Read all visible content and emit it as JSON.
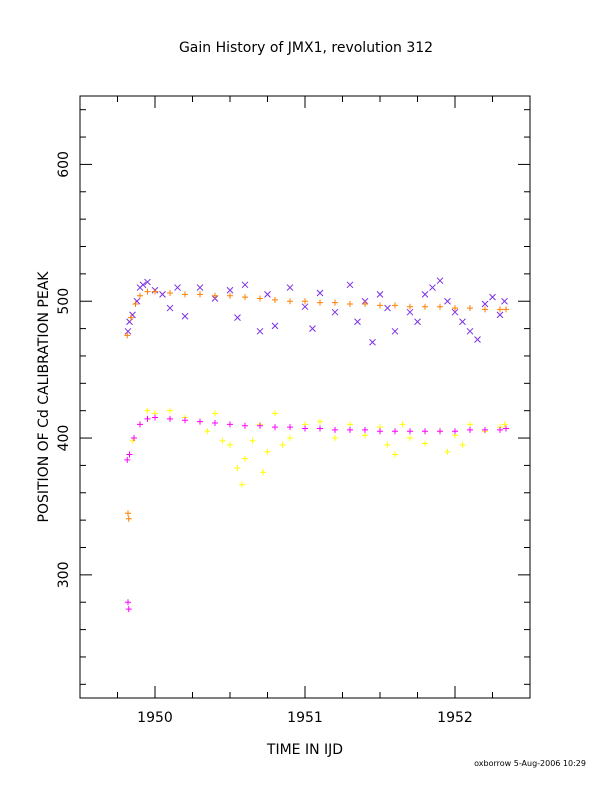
{
  "chart_data": {
    "type": "scatter",
    "title": "Gain History of JMX1, revolution 312",
    "xlabel": "TIME IN IJD",
    "ylabel": "POSITION OF Cd CALIBRATION PEAK",
    "xlim": [
      1949.5,
      1952.5
    ],
    "ylim": [
      210,
      650
    ],
    "x_ticks": [
      "1950",
      "1951",
      "1952"
    ],
    "x_tick_values": [
      1950,
      1951,
      1952
    ],
    "y_ticks": [
      "300",
      "400",
      "500",
      "600"
    ],
    "y_tick_values": [
      300,
      400,
      500,
      600
    ],
    "grid": false,
    "legend": "none",
    "series": [
      {
        "marker": "x",
        "color": "#7b2fe6",
        "points": [
          [
            1949.82,
            478
          ],
          [
            1949.83,
            485
          ],
          [
            1949.85,
            490
          ],
          [
            1949.88,
            500
          ],
          [
            1949.9,
            510
          ],
          [
            1949.92,
            512
          ],
          [
            1949.95,
            514
          ],
          [
            1950.0,
            508
          ],
          [
            1950.05,
            505
          ],
          [
            1950.1,
            495
          ],
          [
            1950.15,
            510
          ],
          [
            1950.2,
            489
          ],
          [
            1950.3,
            510
          ],
          [
            1950.4,
            502
          ],
          [
            1950.5,
            508
          ],
          [
            1950.55,
            488
          ],
          [
            1950.6,
            512
          ],
          [
            1950.7,
            478
          ],
          [
            1950.75,
            505
          ],
          [
            1950.8,
            482
          ],
          [
            1950.9,
            510
          ],
          [
            1951.0,
            496
          ],
          [
            1951.05,
            480
          ],
          [
            1951.1,
            506
          ],
          [
            1951.2,
            492
          ],
          [
            1951.3,
            512
          ],
          [
            1951.35,
            485
          ],
          [
            1951.4,
            500
          ],
          [
            1951.45,
            470
          ],
          [
            1951.5,
            505
          ],
          [
            1951.55,
            495
          ],
          [
            1951.6,
            478
          ],
          [
            1951.7,
            492
          ],
          [
            1951.75,
            485
          ],
          [
            1951.8,
            505
          ],
          [
            1951.85,
            510
          ],
          [
            1951.9,
            515
          ],
          [
            1951.95,
            500
          ],
          [
            1952.0,
            492
          ],
          [
            1952.05,
            485
          ],
          [
            1952.1,
            478
          ],
          [
            1952.15,
            472
          ],
          [
            1952.2,
            498
          ],
          [
            1952.25,
            503
          ],
          [
            1952.3,
            490
          ],
          [
            1952.33,
            500
          ]
        ]
      },
      {
        "marker": "+",
        "color": "#ff7f00",
        "points": [
          [
            1949.815,
            475
          ],
          [
            1949.82,
            345
          ],
          [
            1949.825,
            341
          ],
          [
            1949.84,
            488
          ],
          [
            1949.87,
            498
          ],
          [
            1949.9,
            504
          ],
          [
            1949.95,
            507
          ],
          [
            1950.0,
            507
          ],
          [
            1950.1,
            506
          ],
          [
            1950.2,
            505
          ],
          [
            1950.3,
            505
          ],
          [
            1950.4,
            504
          ],
          [
            1950.5,
            504
          ],
          [
            1950.6,
            503
          ],
          [
            1950.7,
            502
          ],
          [
            1950.8,
            501
          ],
          [
            1950.9,
            500
          ],
          [
            1951.0,
            500
          ],
          [
            1951.1,
            499
          ],
          [
            1951.2,
            499
          ],
          [
            1951.3,
            498
          ],
          [
            1951.4,
            498
          ],
          [
            1951.5,
            497
          ],
          [
            1951.6,
            497
          ],
          [
            1951.7,
            496
          ],
          [
            1951.8,
            496
          ],
          [
            1951.9,
            496
          ],
          [
            1952.0,
            495
          ],
          [
            1952.1,
            495
          ],
          [
            1952.2,
            494
          ],
          [
            1952.3,
            494
          ],
          [
            1952.34,
            494
          ]
        ]
      },
      {
        "marker": "+",
        "color": "#ffff00",
        "points": [
          [
            1949.85,
            398
          ],
          [
            1949.9,
            410
          ],
          [
            1949.95,
            420
          ],
          [
            1950.0,
            418
          ],
          [
            1950.1,
            420
          ],
          [
            1950.2,
            415
          ],
          [
            1950.3,
            412
          ],
          [
            1950.35,
            405
          ],
          [
            1950.4,
            418
          ],
          [
            1950.45,
            398
          ],
          [
            1950.5,
            395
          ],
          [
            1950.55,
            378
          ],
          [
            1950.58,
            366
          ],
          [
            1950.6,
            385
          ],
          [
            1950.65,
            398
          ],
          [
            1950.7,
            410
          ],
          [
            1950.72,
            375
          ],
          [
            1950.75,
            390
          ],
          [
            1950.8,
            418
          ],
          [
            1950.85,
            395
          ],
          [
            1950.9,
            400
          ],
          [
            1951.0,
            410
          ],
          [
            1951.1,
            412
          ],
          [
            1951.2,
            400
          ],
          [
            1951.3,
            410
          ],
          [
            1951.4,
            402
          ],
          [
            1951.5,
            408
          ],
          [
            1951.55,
            395
          ],
          [
            1951.6,
            388
          ],
          [
            1951.65,
            410
          ],
          [
            1951.7,
            400
          ],
          [
            1951.8,
            396
          ],
          [
            1951.9,
            405
          ],
          [
            1951.95,
            390
          ],
          [
            1952.0,
            402
          ],
          [
            1952.05,
            395
          ],
          [
            1952.1,
            410
          ],
          [
            1952.2,
            405
          ],
          [
            1952.3,
            408
          ],
          [
            1952.33,
            410
          ]
        ]
      },
      {
        "marker": "+",
        "color": "#ff00ff",
        "points": [
          [
            1949.815,
            384
          ],
          [
            1949.82,
            280
          ],
          [
            1949.825,
            275
          ],
          [
            1949.83,
            388
          ],
          [
            1949.86,
            400
          ],
          [
            1949.9,
            410
          ],
          [
            1949.95,
            414
          ],
          [
            1950.0,
            415
          ],
          [
            1950.1,
            414
          ],
          [
            1950.2,
            413
          ],
          [
            1950.3,
            412
          ],
          [
            1950.4,
            411
          ],
          [
            1950.5,
            410
          ],
          [
            1950.6,
            409
          ],
          [
            1950.7,
            409
          ],
          [
            1950.8,
            408
          ],
          [
            1950.9,
            408
          ],
          [
            1951.0,
            407
          ],
          [
            1951.1,
            407
          ],
          [
            1951.2,
            406
          ],
          [
            1951.3,
            406
          ],
          [
            1951.4,
            406
          ],
          [
            1951.5,
            405
          ],
          [
            1951.6,
            405
          ],
          [
            1951.7,
            405
          ],
          [
            1951.8,
            405
          ],
          [
            1951.9,
            405
          ],
          [
            1952.0,
            405
          ],
          [
            1952.1,
            406
          ],
          [
            1952.2,
            406
          ],
          [
            1952.3,
            406
          ],
          [
            1952.34,
            407
          ]
        ]
      }
    ]
  },
  "footer": "oxborrow   5-Aug-2006 10:29"
}
